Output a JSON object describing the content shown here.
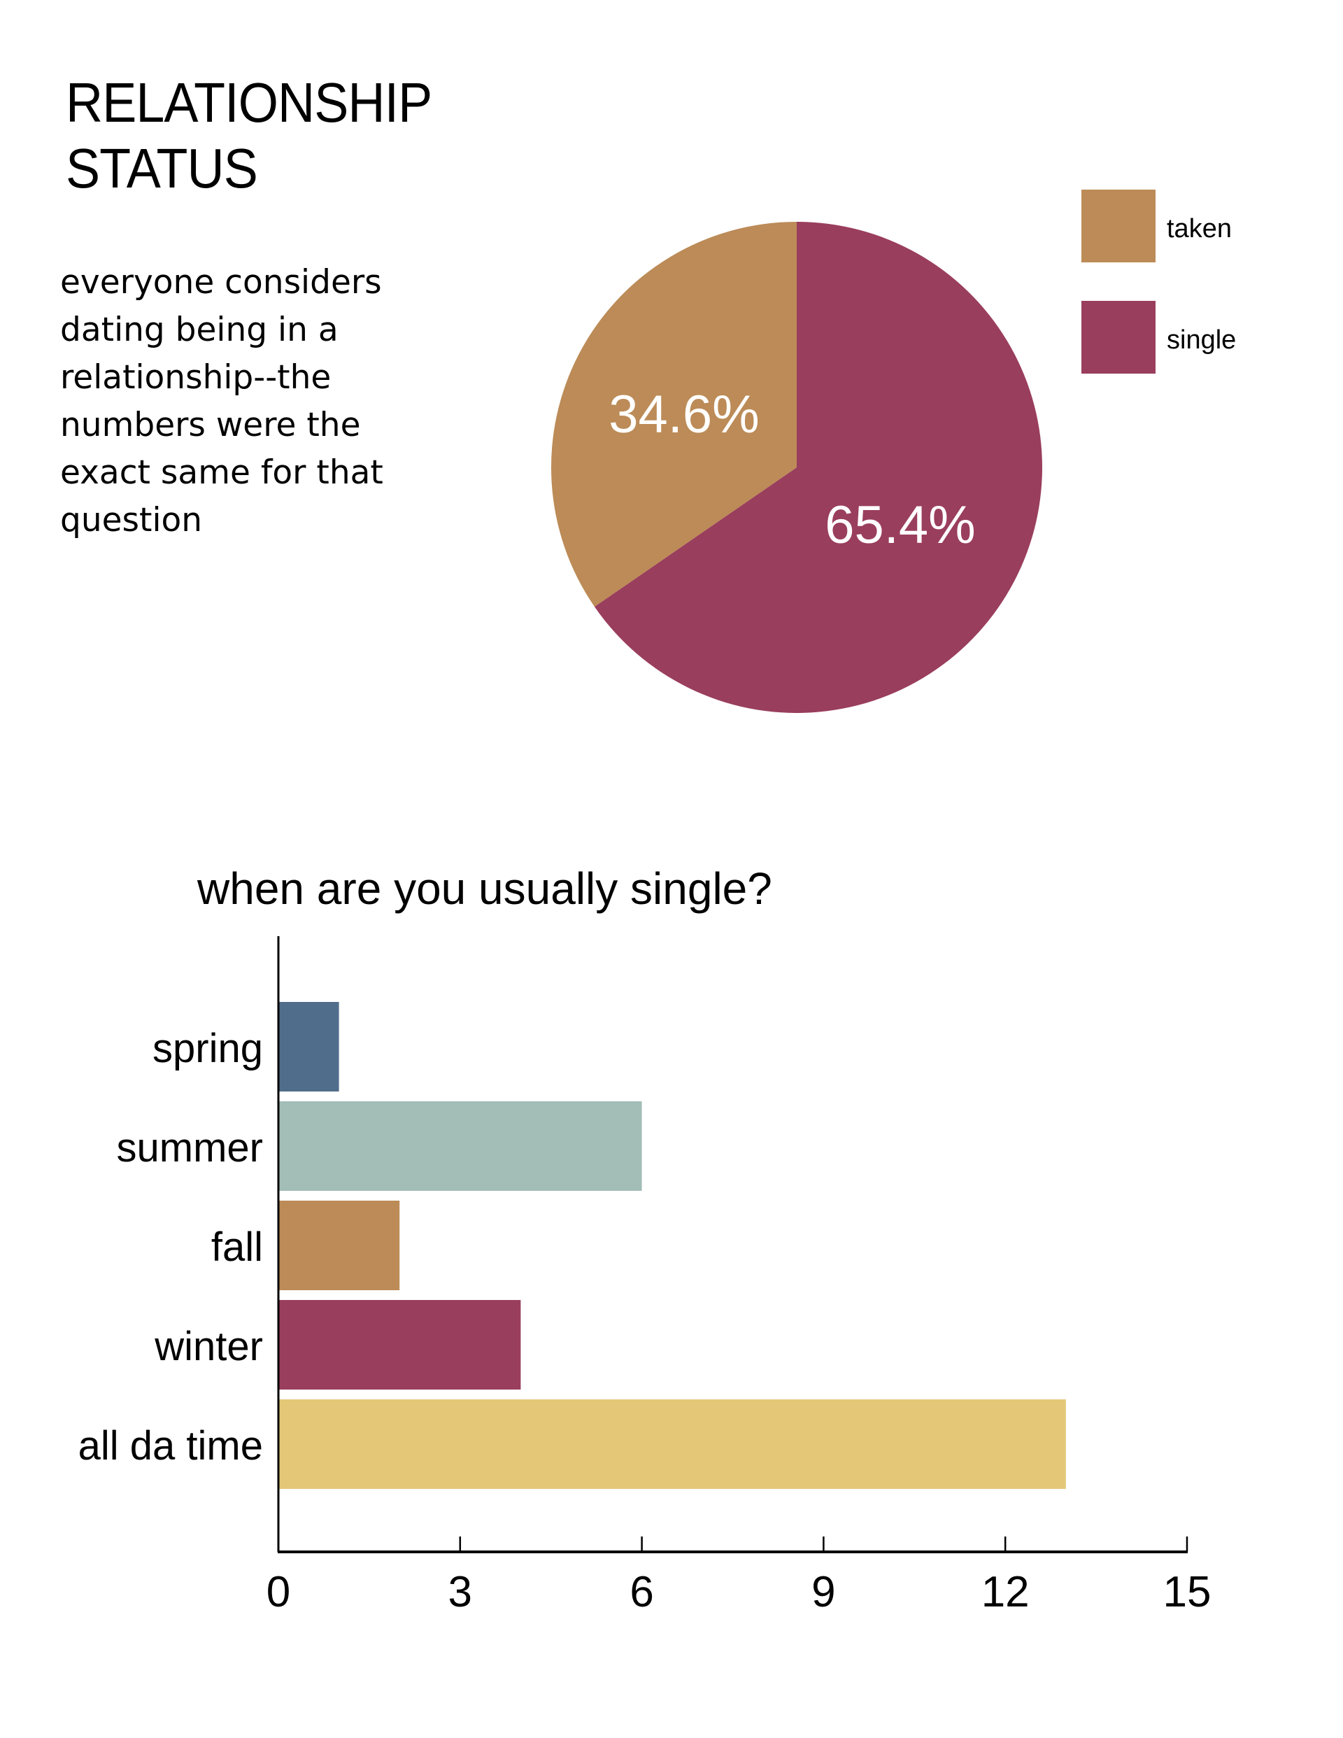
{
  "title_lines": [
    "RELATIONSHIP",
    "STATUS"
  ],
  "description_lines": [
    "everyone considers",
    "dating being in a",
    "relationship--the",
    "numbers were the",
    "exact same for that",
    "question"
  ],
  "chart_data": [
    {
      "type": "pie",
      "title": "Relationship Status",
      "categories": [
        "taken",
        "single"
      ],
      "values": [
        34.6,
        65.4
      ],
      "labels": [
        "34.6%",
        "65.4%"
      ],
      "colors": [
        "#bc8b57",
        "#9a3e5d"
      ],
      "legend": "top-right"
    },
    {
      "type": "bar",
      "orientation": "horizontal",
      "title": "when are you usually single?",
      "categories": [
        "spring",
        "summer",
        "fall",
        "winter",
        "all da time"
      ],
      "values": [
        1,
        6,
        2,
        4,
        13
      ],
      "colors": [
        "#516d8c",
        "#a3bdb7",
        "#bc8b57",
        "#9a3e5d",
        "#e4c878"
      ],
      "xlabel": "",
      "ylabel": "",
      "xlim": [
        0,
        15
      ],
      "xticks": [
        0,
        3,
        6,
        9,
        12,
        15
      ],
      "grid": false
    }
  ]
}
